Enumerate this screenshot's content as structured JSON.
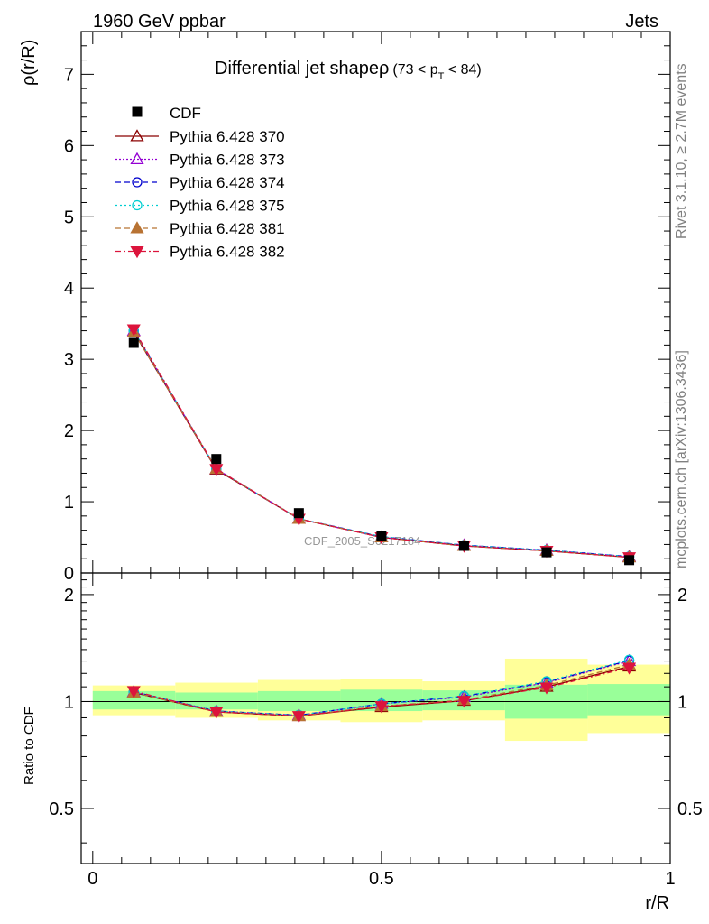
{
  "header": {
    "energy_label": "1960 GeV ppbar",
    "process_label": "Jets"
  },
  "side_labels": {
    "rivet": "Rivet 3.1.10, ≥ 2.7M events",
    "mcplots": "mcplots.cern.ch [arXiv:1306.3436]"
  },
  "chart_data": [
    {
      "type": "line",
      "title": "Differential jet shape",
      "title_symbol": "ρ",
      "title_range": "(73 < p",
      "title_range_sub": "T",
      "title_range_end": " < 84)",
      "ylabel": "ρ(r/R)",
      "ylim": [
        0,
        7.6
      ],
      "yticks": [
        0,
        1,
        2,
        3,
        4,
        5,
        6,
        7
      ],
      "xlim": [
        -0.02,
        1.0
      ],
      "watermark": "CDF_2005_S6217184",
      "x": [
        0.071,
        0.214,
        0.357,
        0.5,
        0.643,
        0.786,
        0.929
      ],
      "data": {
        "name": "CDF",
        "values": [
          3.23,
          1.6,
          0.84,
          0.52,
          0.38,
          0.29,
          0.18
        ],
        "color": "#000000"
      },
      "series": [
        {
          "name": "Pythia 6.428 370",
          "color": "#8b0000",
          "dash": "",
          "marker": "triangle-open",
          "values": [
            3.38,
            1.45,
            0.76,
            0.5,
            0.38,
            0.31,
            0.22
          ]
        },
        {
          "name": "Pythia 6.428 373",
          "color": "#9400d3",
          "dash": "2,2",
          "marker": "triangle-open",
          "values": [
            3.4,
            1.46,
            0.76,
            0.5,
            0.39,
            0.32,
            0.23
          ]
        },
        {
          "name": "Pythia 6.428 374",
          "color": "#0000cd",
          "dash": "6,4",
          "marker": "circle-open",
          "values": [
            3.4,
            1.46,
            0.76,
            0.51,
            0.39,
            0.32,
            0.23
          ]
        },
        {
          "name": "Pythia 6.428 375",
          "color": "#00ced1",
          "dash": "2,3",
          "marker": "circle-open",
          "values": [
            3.4,
            1.46,
            0.76,
            0.51,
            0.39,
            0.32,
            0.23
          ]
        },
        {
          "name": "Pythia 6.428 381",
          "color": "#b87333",
          "dash": "6,4",
          "marker": "triangle-filled",
          "values": [
            3.38,
            1.46,
            0.76,
            0.5,
            0.38,
            0.31,
            0.22
          ]
        },
        {
          "name": "Pythia 6.428 382",
          "color": "#dc143c",
          "dash": "6,3,2,3",
          "marker": "triangle-down-filled",
          "values": [
            3.42,
            1.46,
            0.76,
            0.5,
            0.38,
            0.31,
            0.22
          ]
        }
      ]
    },
    {
      "type": "line",
      "ylabel": "Ratio to CDF",
      "xlabel": "r/R",
      "ylim": [
        0.35,
        2.3
      ],
      "log_scale_y": true,
      "yticks": [
        0.5,
        1,
        2
      ],
      "ytick_labels": [
        "0.5",
        "1",
        "2"
      ],
      "xlim": [
        -0.02,
        1.0
      ],
      "xticks": [
        0,
        0.5,
        1
      ],
      "xtick_labels": [
        "0",
        "0.5",
        "1"
      ],
      "bins": [
        {
          "lo": 0.0,
          "hi": 0.143,
          "band_inner": [
            0.95,
            1.07
          ],
          "band_outer": [
            0.915,
            1.11
          ]
        },
        {
          "lo": 0.143,
          "hi": 0.286,
          "band_inner": [
            0.95,
            1.06
          ],
          "band_outer": [
            0.9,
            1.13
          ]
        },
        {
          "lo": 0.286,
          "hi": 0.429,
          "band_inner": [
            0.94,
            1.07
          ],
          "band_outer": [
            0.885,
            1.15
          ]
        },
        {
          "lo": 0.429,
          "hi": 0.571,
          "band_inner": [
            0.94,
            1.08
          ],
          "band_outer": [
            0.875,
            1.155
          ]
        },
        {
          "lo": 0.571,
          "hi": 0.714,
          "band_inner": [
            0.945,
            1.075
          ],
          "band_outer": [
            0.885,
            1.14
          ]
        },
        {
          "lo": 0.714,
          "hi": 0.857,
          "band_inner": [
            0.895,
            1.115
          ],
          "band_outer": [
            0.775,
            1.32
          ]
        },
        {
          "lo": 0.857,
          "hi": 1.0,
          "band_inner": [
            0.915,
            1.12
          ],
          "band_outer": [
            0.815,
            1.27
          ]
        }
      ],
      "series": [
        {
          "name": "Pythia 6.428 370",
          "values": [
            1.06,
            0.935,
            0.91,
            0.965,
            1.005,
            1.1,
            1.255
          ]
        },
        {
          "name": "Pythia 6.428 373",
          "values": [
            1.065,
            0.94,
            0.915,
            0.985,
            1.03,
            1.13,
            1.3
          ]
        },
        {
          "name": "Pythia 6.428 374",
          "values": [
            1.065,
            0.94,
            0.915,
            0.985,
            1.035,
            1.135,
            1.305
          ]
        },
        {
          "name": "Pythia 6.428 375",
          "values": [
            1.065,
            0.94,
            0.915,
            0.985,
            1.035,
            1.14,
            1.31
          ]
        },
        {
          "name": "Pythia 6.428 381",
          "values": [
            1.06,
            0.935,
            0.91,
            0.97,
            1.01,
            1.11,
            1.27
          ]
        },
        {
          "name": "Pythia 6.428 382",
          "values": [
            1.07,
            0.935,
            0.91,
            0.97,
            1.005,
            1.095,
            1.245
          ]
        }
      ]
    }
  ]
}
